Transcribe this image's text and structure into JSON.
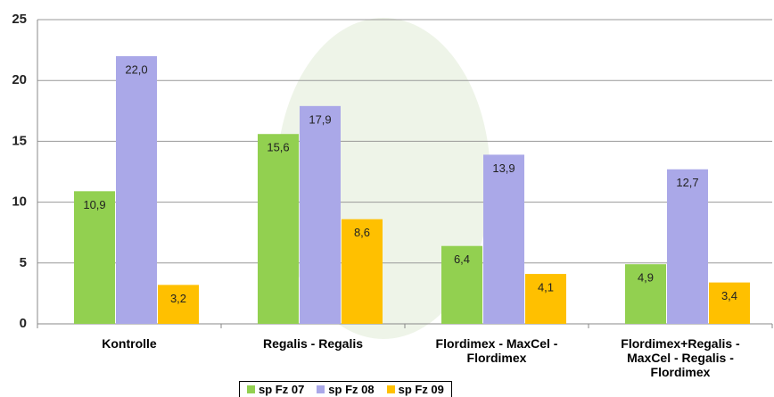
{
  "chart_data": {
    "type": "bar",
    "categories": [
      "Kontrolle",
      "Regalis - Regalis",
      "Flordimex - MaxCel -\nFlordimex",
      "Flordimex+Regalis -\nMaxCel - Regalis -\nFlordimex"
    ],
    "series": [
      {
        "name": "sp Fz 07",
        "color": "#92d050",
        "values": [
          10.9,
          15.6,
          6.4,
          4.9
        ],
        "value_labels": [
          "10,9",
          "15,6",
          "6,4",
          "4,9"
        ]
      },
      {
        "name": "sp Fz 08",
        "color": "#aaa8e8",
        "values": [
          22.0,
          17.9,
          13.9,
          12.7
        ],
        "value_labels": [
          "22,0",
          "17,9",
          "13,9",
          "12,7"
        ]
      },
      {
        "name": "sp Fz 09",
        "color": "#ffc000",
        "values": [
          3.2,
          8.6,
          4.1,
          3.4
        ],
        "value_labels": [
          "3,2",
          "8,6",
          "4,1",
          "3,4"
        ]
      }
    ],
    "ylim": [
      0,
      25
    ],
    "yticks": [
      0,
      5,
      10,
      15,
      20,
      25
    ],
    "grid": true,
    "legend": "bottom"
  }
}
